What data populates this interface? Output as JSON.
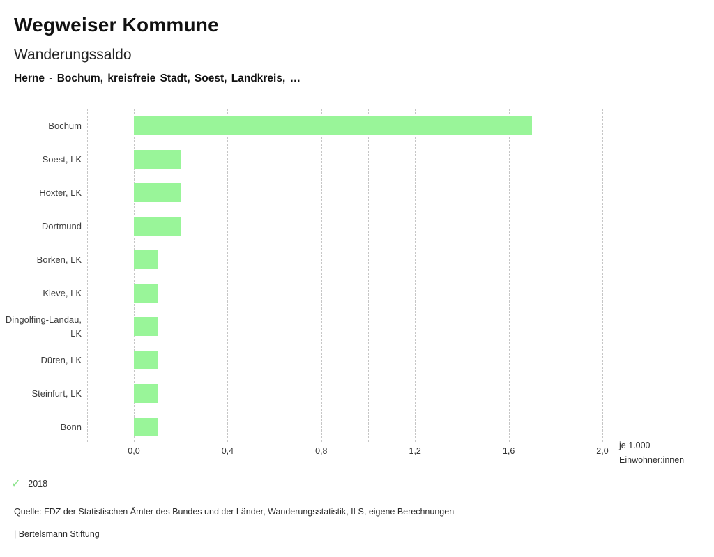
{
  "header": {
    "title": "Wegweiser Kommune",
    "subtitle": "Wanderungssaldo",
    "filter_line": "Herne - Bochum, kreisfreie Stadt, Soest, Landkreis, …"
  },
  "chart_data": {
    "type": "bar",
    "orientation": "horizontal",
    "title": "Wanderungssaldo",
    "categories": [
      "Bochum",
      "Soest, LK",
      "Höxter, LK",
      "Dortmund",
      "Borken, LK",
      "Kleve, LK",
      "Dingolfing-Landau, LK",
      "Düren, LK",
      "Steinfurt, LK",
      "Bonn"
    ],
    "values": [
      1.7,
      0.2,
      0.2,
      0.2,
      0.1,
      0.1,
      0.1,
      0.1,
      0.1,
      0.1
    ],
    "series_name": "2018",
    "xlabel": "je 1.000 Einwohner:innen",
    "xlim": [
      -0.2,
      2.0
    ],
    "grid_step": 0.2,
    "grid": true,
    "x_ticks": [
      {
        "label": "0,0",
        "value": 0.0
      },
      {
        "label": "0,4",
        "value": 0.4
      },
      {
        "label": "0,8",
        "value": 0.8
      },
      {
        "label": "1,2",
        "value": 1.2
      },
      {
        "label": "1,6",
        "value": 1.6
      },
      {
        "label": "2,0",
        "value": 2.0
      }
    ],
    "bar_color": "#99f599",
    "grid_color": "#c6c6c6",
    "legend_position": "bottom-left"
  },
  "axis_unit": {
    "line1": "je 1.000",
    "line2": "Einwohner:innen"
  },
  "legend": {
    "year": "2018",
    "check_icon": "✓",
    "check_color": "#8ce48c"
  },
  "footer": {
    "source": "Quelle: FDZ der Statistischen Ämter des Bundes und der Länder, Wanderungsstatistik, ILS, eigene Berechnungen",
    "branding": "| Bertelsmann Stiftung"
  }
}
